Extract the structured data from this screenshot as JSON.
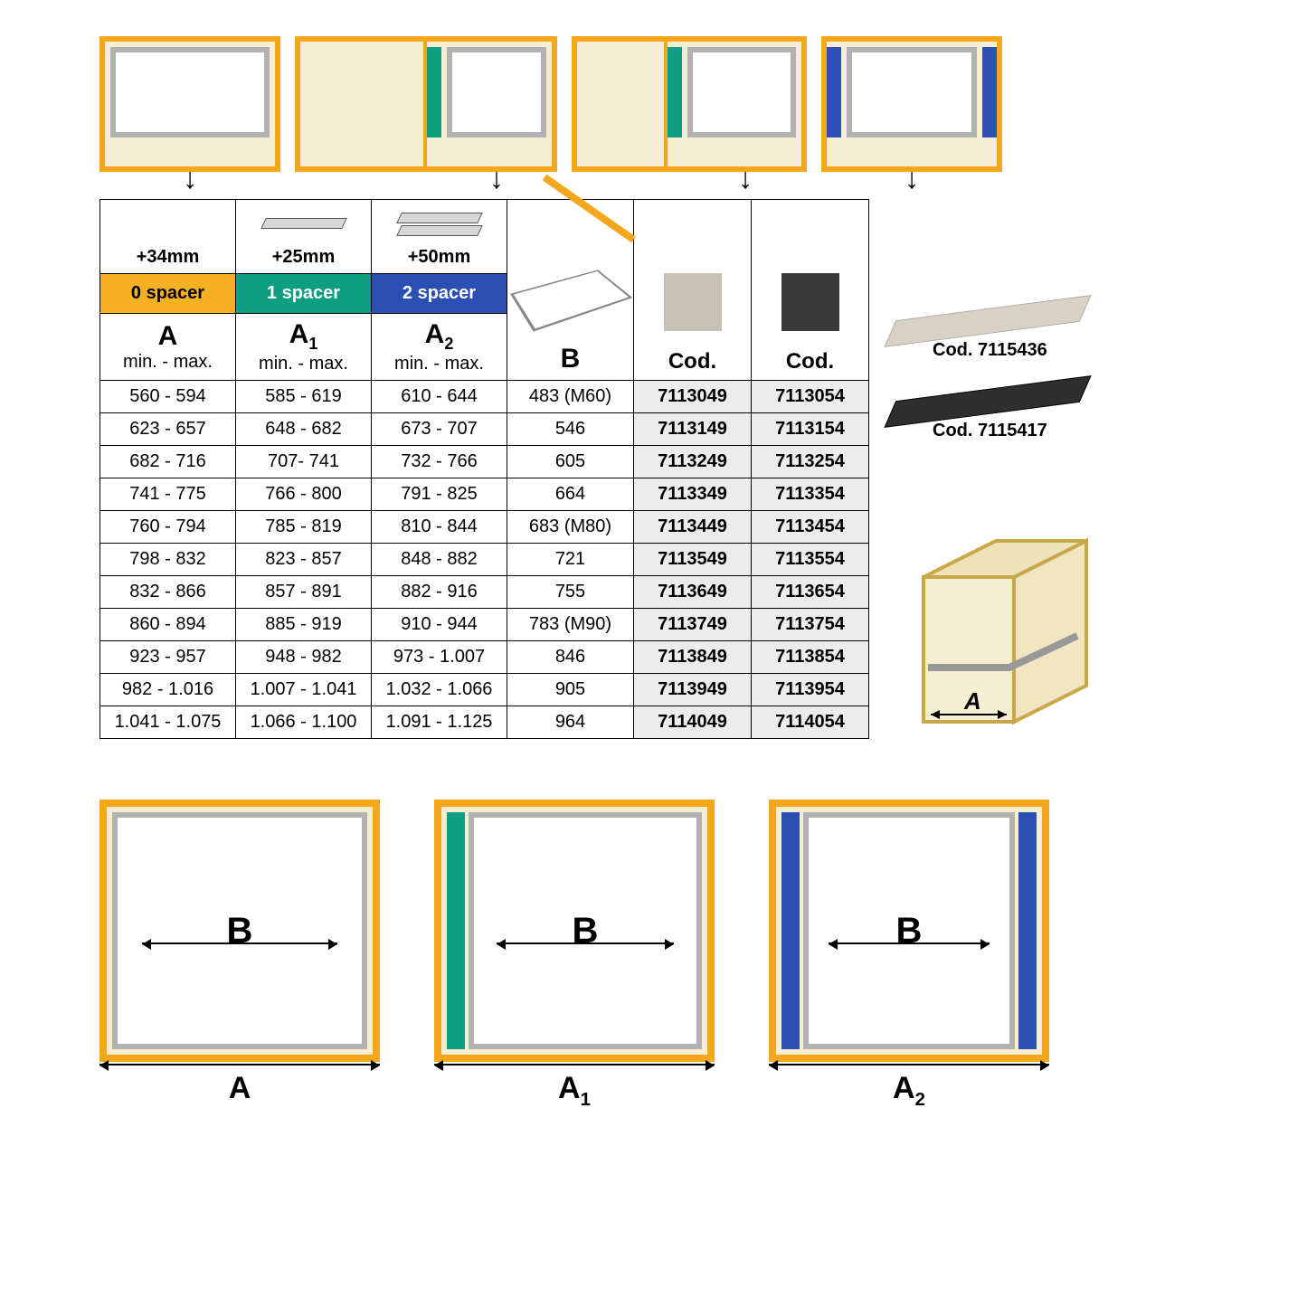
{
  "colors": {
    "frame_orange": "#f4a71a",
    "panel_cream": "#f6eed2",
    "spacer_green": "#0e9e82",
    "spacer_blue": "#2b4fb3",
    "drawer_grey": "#b2b2b2",
    "code_bg": "#ececec",
    "swatch_light": "#c7c1b6",
    "swatch_dark": "#3a3a3a"
  },
  "header": {
    "offsets": [
      "+34mm",
      "+25mm",
      "+50mm"
    ],
    "spacer_labels": [
      "0 spacer",
      "1 spacer",
      "2 spacer"
    ],
    "col_letters": [
      "A",
      "A₁",
      "A₂"
    ],
    "minmax": "min. - max.",
    "b_label": "B",
    "cod_label": "Cod."
  },
  "rows": [
    {
      "a": "560 - 594",
      "a1": "585 - 619",
      "a2": "610 - 644",
      "b": "483 (M60)",
      "c1": "7113049",
      "c2": "7113054"
    },
    {
      "a": "623 - 657",
      "a1": "648 - 682",
      "a2": "673 - 707",
      "b": "546",
      "c1": "7113149",
      "c2": "7113154"
    },
    {
      "a": "682 - 716",
      "a1": "707- 741",
      "a2": "732 - 766",
      "b": "605",
      "c1": "7113249",
      "c2": "7113254"
    },
    {
      "a": "741 - 775",
      "a1": "766 - 800",
      "a2": "791 - 825",
      "b": "664",
      "c1": "7113349",
      "c2": "7113354"
    },
    {
      "a": "760 - 794",
      "a1": "785 - 819",
      "a2": "810 - 844",
      "b": "683 (M80)",
      "c1": "7113449",
      "c2": "7113454"
    },
    {
      "a": "798 - 832",
      "a1": "823 - 857",
      "a2": "848 - 882",
      "b": "721",
      "c1": "7113549",
      "c2": "7113554"
    },
    {
      "a": "832 - 866",
      "a1": "857 - 891",
      "a2": "882 - 916",
      "b": "755",
      "c1": "7113649",
      "c2": "7113654"
    },
    {
      "a": "860 - 894",
      "a1": "885 - 919",
      "a2": "910 - 944",
      "b": "783 (M90)",
      "c1": "7113749",
      "c2": "7113754"
    },
    {
      "a": "923 - 957",
      "a1": "948 - 982",
      "a2": "973 - 1.007",
      "b": "846",
      "c1": "7113849",
      "c2": "7113854"
    },
    {
      "a": "982 - 1.016",
      "a1": "1.007 - 1.041",
      "a2": "1.032 - 1.066",
      "b": "905",
      "c1": "7113949",
      "c2": "7113954"
    },
    {
      "a": "1.041 - 1.075",
      "a1": "1.066 - 1.100",
      "a2": "1.091 - 1.125",
      "b": "964",
      "c1": "7114049",
      "c2": "7114054"
    }
  ],
  "side": {
    "code1_label": "Cod. 7115436",
    "code2_label": "Cod. 7115417",
    "cabinet_dim": "A"
  },
  "bottom": {
    "b_label": "B",
    "dims": [
      "A",
      "A₁",
      "A₂"
    ]
  }
}
